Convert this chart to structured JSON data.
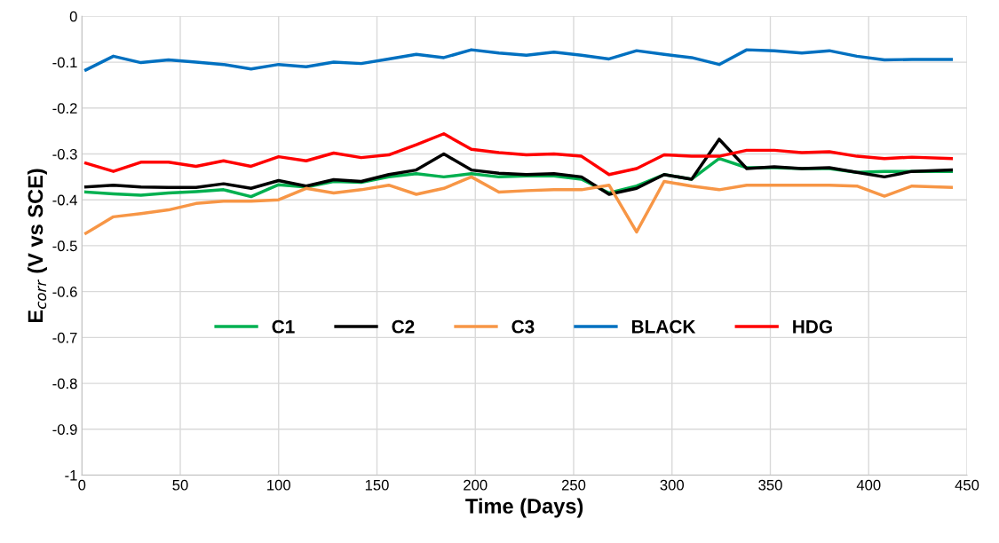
{
  "chart_data": {
    "type": "line",
    "xlabel": "Time (Days)",
    "ylabel": "E$_{corr}$ (V vs SCE)",
    "x": [
      2,
      16,
      30,
      44,
      58,
      72,
      86,
      100,
      114,
      128,
      142,
      156,
      170,
      184,
      198,
      212,
      226,
      240,
      254,
      268,
      282,
      296,
      310,
      324,
      338,
      352,
      366,
      380,
      394,
      408,
      422,
      442
    ],
    "series": [
      {
        "name": "C1",
        "color": "#00b050",
        "values": [
          -0.383,
          -0.387,
          -0.39,
          -0.385,
          -0.382,
          -0.378,
          -0.393,
          -0.367,
          -0.372,
          -0.36,
          -0.362,
          -0.35,
          -0.343,
          -0.35,
          -0.343,
          -0.35,
          -0.348,
          -0.348,
          -0.355,
          -0.385,
          -0.37,
          -0.345,
          -0.355,
          -0.31,
          -0.33,
          -0.33,
          -0.332,
          -0.332,
          -0.34,
          -0.338,
          -0.338,
          -0.338
        ]
      },
      {
        "name": "C2",
        "color": "#000000",
        "values": [
          -0.372,
          -0.368,
          -0.372,
          -0.373,
          -0.373,
          -0.365,
          -0.375,
          -0.358,
          -0.37,
          -0.356,
          -0.36,
          -0.345,
          -0.335,
          -0.3,
          -0.335,
          -0.342,
          -0.345,
          -0.343,
          -0.35,
          -0.388,
          -0.375,
          -0.345,
          -0.355,
          -0.268,
          -0.332,
          -0.328,
          -0.332,
          -0.33,
          -0.34,
          -0.35,
          -0.338,
          -0.335
        ]
      },
      {
        "name": "C3",
        "color": "#f79646",
        "values": [
          -0.473,
          -0.437,
          -0.43,
          -0.422,
          -0.408,
          -0.403,
          -0.403,
          -0.4,
          -0.375,
          -0.385,
          -0.378,
          -0.368,
          -0.388,
          -0.375,
          -0.35,
          -0.383,
          -0.38,
          -0.378,
          -0.378,
          -0.368,
          -0.47,
          -0.36,
          -0.37,
          -0.378,
          -0.368,
          -0.368,
          -0.368,
          -0.368,
          -0.37,
          -0.392,
          -0.37,
          -0.373
        ]
      },
      {
        "name": "BLACK",
        "color": "#0070c0",
        "values": [
          -0.117,
          -0.087,
          -0.101,
          -0.095,
          -0.1,
          -0.105,
          -0.115,
          -0.105,
          -0.11,
          -0.1,
          -0.103,
          -0.093,
          -0.083,
          -0.09,
          -0.073,
          -0.08,
          -0.085,
          -0.078,
          -0.085,
          -0.093,
          -0.075,
          -0.083,
          -0.09,
          -0.105,
          -0.073,
          -0.075,
          -0.08,
          -0.075,
          -0.087,
          -0.095,
          -0.094,
          -0.094
        ]
      },
      {
        "name": "HDG",
        "color": "#ff0000",
        "values": [
          -0.32,
          -0.338,
          -0.318,
          -0.318,
          -0.327,
          -0.315,
          -0.327,
          -0.306,
          -0.315,
          -0.298,
          -0.308,
          -0.302,
          -0.28,
          -0.256,
          -0.29,
          -0.297,
          -0.302,
          -0.3,
          -0.305,
          -0.345,
          -0.332,
          -0.302,
          -0.305,
          -0.305,
          -0.292,
          -0.292,
          -0.297,
          -0.295,
          -0.305,
          -0.31,
          -0.307,
          -0.31
        ]
      }
    ],
    "xlim": [
      0,
      450
    ],
    "xticks": [
      0,
      50,
      100,
      150,
      200,
      250,
      300,
      350,
      400,
      450
    ],
    "ylim": [
      -1,
      0
    ],
    "yticks": [
      -1,
      -0.9,
      -0.8,
      -0.7,
      -0.6,
      -0.5,
      -0.4,
      -0.3,
      -0.2,
      -0.1,
      0
    ],
    "grid": true,
    "legend": "center",
    "marker": "none",
    "line_style": "solid"
  }
}
